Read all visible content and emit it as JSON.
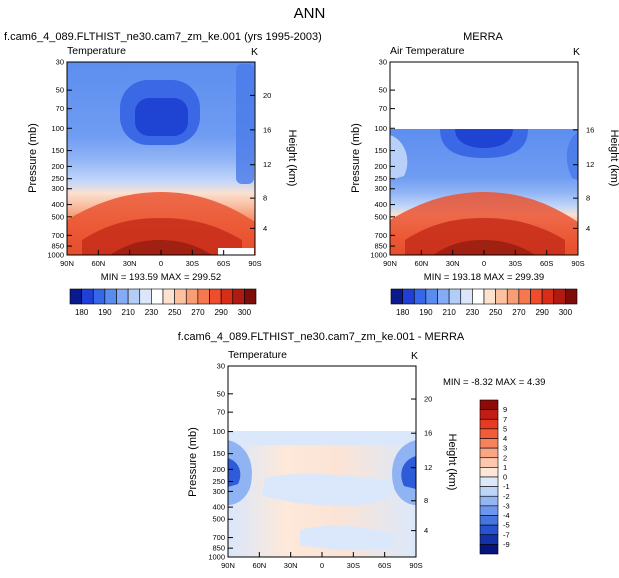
{
  "page_title": "ANN",
  "chart_data": [
    {
      "type": "heatmap",
      "title": "f.cam6_4_089.FLTHIST_ne30.cam7_zm_ke.001 (yrs 1995-2003)",
      "variable": "Temperature",
      "units": "K",
      "ylabel": "Pressure (mb)",
      "ylabel_right": "Height (km)",
      "x_ticks": [
        "90N",
        "60N",
        "30N",
        "0",
        "30S",
        "60S",
        "90S"
      ],
      "y_ticks": [
        "30",
        "50",
        "70",
        "100",
        "150",
        "200",
        "250",
        "300",
        "400",
        "500",
        "700",
        "850",
        "1000"
      ],
      "height_ticks": [
        "4",
        "8",
        "12",
        "16",
        "20"
      ],
      "min": 193.59,
      "max": 299.52,
      "stats_label": "MIN = 193.59  MAX = 299.52",
      "colorbar": {
        "labels": [
          "180",
          "190",
          "210",
          "230",
          "250",
          "270",
          "290",
          "300"
        ],
        "colors": [
          "#0a1a8c",
          "#1f3fd6",
          "#3567e8",
          "#5a8cf0",
          "#85abf5",
          "#b3cdf9",
          "#dbe6fb",
          "#ffffff",
          "#fde2d0",
          "#fbc1a0",
          "#f99d76",
          "#f6784f",
          "#ef4d2c",
          "#d72e1a",
          "#b01a10",
          "#7d0d08"
        ]
      }
    },
    {
      "type": "heatmap",
      "title": "MERRA",
      "variable": "Air Temperature",
      "units": "K",
      "ylabel": "Pressure (mb)",
      "ylabel_right": "Height (km)",
      "x_ticks": [
        "90N",
        "60N",
        "30N",
        "0",
        "30S",
        "60S",
        "90S"
      ],
      "y_ticks": [
        "30",
        "50",
        "70",
        "100",
        "150",
        "200",
        "250",
        "300",
        "400",
        "500",
        "700",
        "850",
        "1000"
      ],
      "height_ticks": [
        "4",
        "8",
        "12",
        "16"
      ],
      "min": 193.18,
      "max": 299.39,
      "stats_label": "MIN = 193.18  MAX = 299.39",
      "colorbar": {
        "labels": [
          "180",
          "190",
          "210",
          "230",
          "250",
          "270",
          "290",
          "300"
        ],
        "colors": [
          "#0a1a8c",
          "#1f3fd6",
          "#3567e8",
          "#5a8cf0",
          "#85abf5",
          "#b3cdf9",
          "#dbe6fb",
          "#ffffff",
          "#fde2d0",
          "#fbc1a0",
          "#f99d76",
          "#f6784f",
          "#ef4d2c",
          "#d72e1a",
          "#b01a10",
          "#7d0d08"
        ]
      }
    },
    {
      "type": "heatmap",
      "title": "f.cam6_4_089.FLTHIST_ne30.cam7_zm_ke.001 - MERRA",
      "variable": "Temperature",
      "units": "K",
      "ylabel": "Pressure (mb)",
      "ylabel_right": "Height (km)",
      "x_ticks": [
        "90N",
        "60N",
        "30N",
        "0",
        "30S",
        "60S",
        "90S"
      ],
      "y_ticks": [
        "30",
        "50",
        "70",
        "100",
        "150",
        "200",
        "250",
        "300",
        "400",
        "500",
        "700",
        "850",
        "1000"
      ],
      "height_ticks": [
        "4",
        "8",
        "12",
        "16",
        "20"
      ],
      "min": -8.32,
      "max": 4.39,
      "stats_label": "MIN = -8.32  MAX =  4.39",
      "colorbar": {
        "labels": [
          "9",
          "7",
          "5",
          "4",
          "3",
          "2",
          "1",
          "0",
          "-1",
          "-2",
          "-3",
          "-4",
          "-5",
          "-7",
          "-9"
        ],
        "colors": [
          "#8c0b08",
          "#c21d14",
          "#e63a22",
          "#f25c3a",
          "#f7825e",
          "#fba683",
          "#fdc9ae",
          "#fee6d8",
          "#dde9fb",
          "#bcd4f8",
          "#93b6f3",
          "#6c97ec",
          "#4675e0",
          "#2752d0",
          "#1232a8",
          "#07147e"
        ]
      }
    }
  ]
}
